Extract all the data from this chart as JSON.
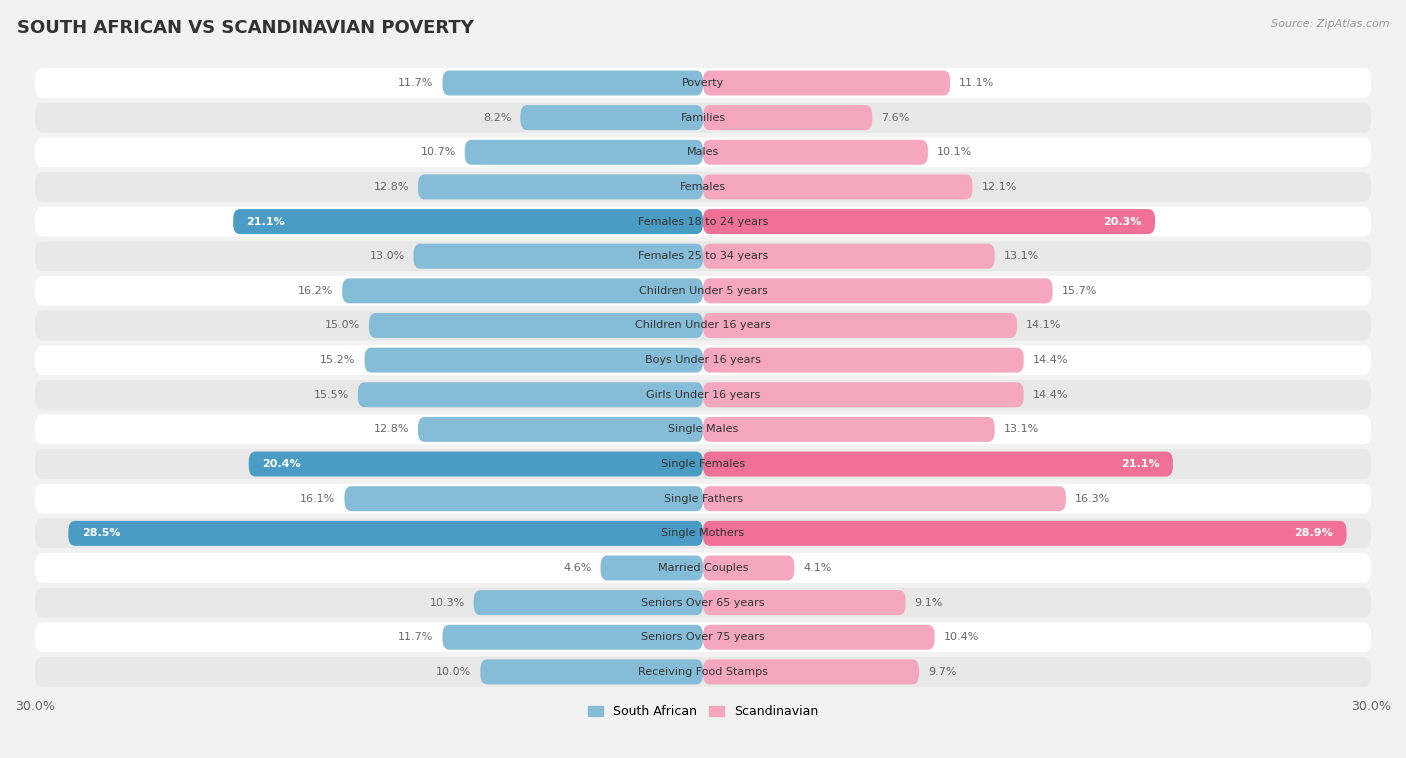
{
  "title": "SOUTH AFRICAN VS SCANDINAVIAN POVERTY",
  "source": "Source: ZipAtlas.com",
  "categories": [
    "Poverty",
    "Families",
    "Males",
    "Females",
    "Females 18 to 24 years",
    "Females 25 to 34 years",
    "Children Under 5 years",
    "Children Under 16 years",
    "Boys Under 16 years",
    "Girls Under 16 years",
    "Single Males",
    "Single Females",
    "Single Fathers",
    "Single Mothers",
    "Married Couples",
    "Seniors Over 65 years",
    "Seniors Over 75 years",
    "Receiving Food Stamps"
  ],
  "south_african": [
    11.7,
    8.2,
    10.7,
    12.8,
    21.1,
    13.0,
    16.2,
    15.0,
    15.2,
    15.5,
    12.8,
    20.4,
    16.1,
    28.5,
    4.6,
    10.3,
    11.7,
    10.0
  ],
  "scandinavian": [
    11.1,
    7.6,
    10.1,
    12.1,
    20.3,
    13.1,
    15.7,
    14.1,
    14.4,
    14.4,
    13.1,
    21.1,
    16.3,
    28.9,
    4.1,
    9.1,
    10.4,
    9.7
  ],
  "sa_color": "#85bcd8",
  "sc_color": "#f5a7bf",
  "sa_highlight_color": "#4a9cc5",
  "sc_highlight_color": "#f07098",
  "highlight_rows": [
    4,
    11,
    13
  ],
  "background_color": "#f2f2f2",
  "row_color_even": "#ffffff",
  "row_color_odd": "#e8e8e8",
  "max_val": 30.0,
  "legend_sa": "South African",
  "legend_sc": "Scandinavian",
  "title_fontsize": 13,
  "source_fontsize": 8,
  "label_fontsize": 8,
  "value_fontsize": 8
}
